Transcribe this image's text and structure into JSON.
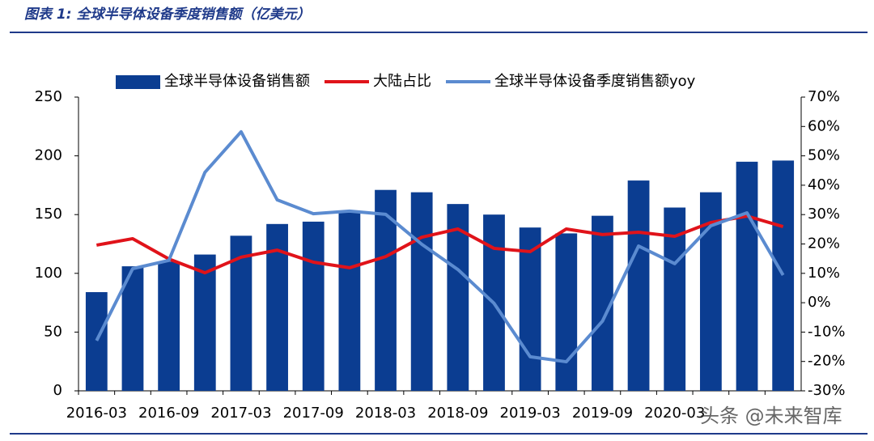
{
  "chart_data": {
    "type": "bar_line",
    "title": "图表 1:  全球半导体设备季度销售额（亿美元）",
    "watermark": "头条 @未来智库",
    "categories": [
      "2016-03",
      null,
      "2016-09",
      null,
      "2017-03",
      null,
      "2017-09",
      null,
      "2018-03",
      null,
      "2018-09",
      null,
      "2019-03",
      null,
      "2019-09",
      null,
      "2020-03",
      null,
      null,
      null
    ],
    "series": [
      {
        "name": "全球半导体设备销售额",
        "type": "bar",
        "color": "#0b3d91",
        "values": [
          84,
          106,
          110,
          116,
          132,
          142,
          144,
          152,
          171,
          169,
          159,
          150,
          139,
          134,
          149,
          179,
          156,
          169,
          195,
          196
        ]
      },
      {
        "name": "大陆占比",
        "type": "line",
        "axis": "y2",
        "color": "#e0131a",
        "values": [
          19.6,
          21.8,
          14.9,
          10.2,
          15.5,
          17.9,
          13.8,
          11.9,
          15.7,
          22.3,
          25.1,
          18.5,
          17.4,
          25.1,
          23.2,
          24.0,
          22.6,
          27.3,
          29.5,
          25.9
        ]
      },
      {
        "name": "全球半导体设备季度销售额yoy",
        "type": "line",
        "axis": "y2",
        "color": "#5b8bd0",
        "values": [
          -12.9,
          11.6,
          14.4,
          44.4,
          58.2,
          35.0,
          30.3,
          31.2,
          30.1,
          19.9,
          11.3,
          -0.2,
          -18.4,
          -20.1,
          -6.3,
          19.3,
          13.3,
          26.2,
          30.6,
          9.4
        ]
      }
    ],
    "ylim": [
      0,
      250
    ],
    "yticks": [
      0,
      50,
      100,
      150,
      200,
      250
    ],
    "y2lim": [
      -30,
      70
    ],
    "y2ticks": [
      {
        "value": -30,
        "label": "-30%"
      },
      {
        "value": -20,
        "label": "-20%"
      },
      {
        "value": -10,
        "label": "-10%"
      },
      {
        "value": 0,
        "label": "0%"
      },
      {
        "value": 10,
        "label": "10%"
      },
      {
        "value": 20,
        "label": "20%"
      },
      {
        "value": 30,
        "label": "30%"
      },
      {
        "value": 40,
        "label": "40%"
      },
      {
        "value": 50,
        "label": "50%"
      },
      {
        "value": 60,
        "label": "60%"
      },
      {
        "value": 70,
        "label": "70%"
      }
    ],
    "legend": "top",
    "grid": false
  }
}
